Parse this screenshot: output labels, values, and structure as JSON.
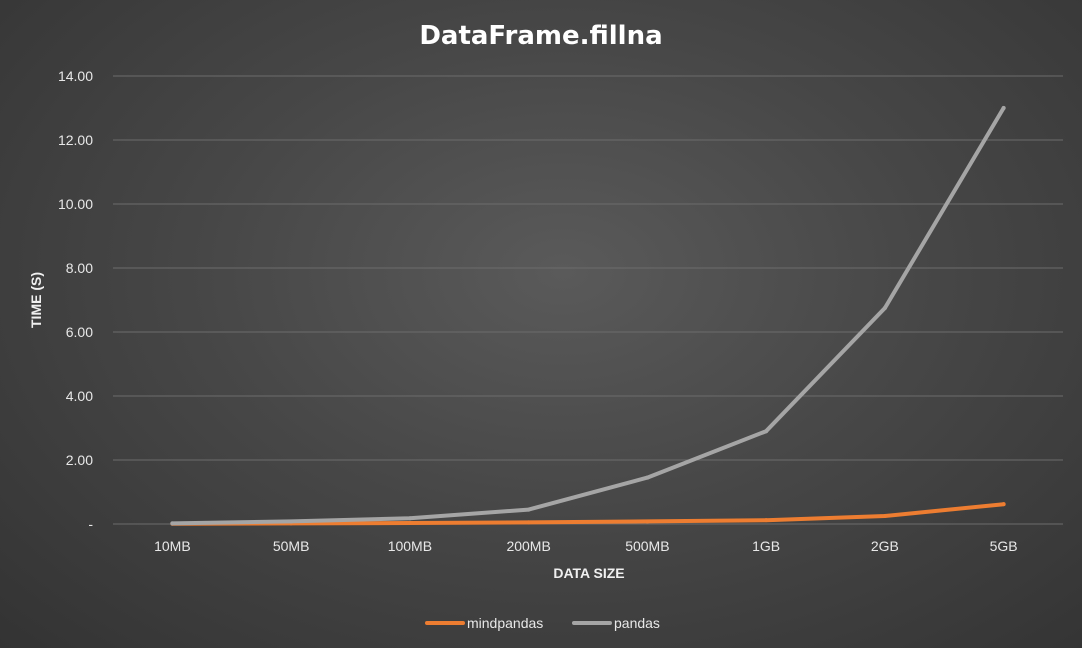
{
  "chart_data": {
    "type": "line",
    "title": "DataFrame.fillna",
    "xlabel": "DATA SIZE",
    "ylabel": "TIME (S)",
    "categories": [
      "10MB",
      "50MB",
      "100MB",
      "200MB",
      "500MB",
      "1GB",
      "2GB",
      "5GB"
    ],
    "ylim": [
      0,
      14
    ],
    "yticks": [
      {
        "value": 0,
        "label": "-"
      },
      {
        "value": 2,
        "label": "2.00"
      },
      {
        "value": 4,
        "label": "4.00"
      },
      {
        "value": 6,
        "label": "6.00"
      },
      {
        "value": 8,
        "label": "8.00"
      },
      {
        "value": 10,
        "label": "10.00"
      },
      {
        "value": 12,
        "label": "12.00"
      },
      {
        "value": 14,
        "label": "14.00"
      }
    ],
    "grid": true,
    "legend": "bottom",
    "series": [
      {
        "name": "mindpandas",
        "color": "#ed7d31",
        "values": [
          0.01,
          0.02,
          0.03,
          0.05,
          0.08,
          0.12,
          0.25,
          0.62
        ]
      },
      {
        "name": "pandas",
        "color": "#a5a5a5",
        "values": [
          0.02,
          0.08,
          0.18,
          0.45,
          1.45,
          2.9,
          6.75,
          13.0
        ]
      }
    ]
  }
}
